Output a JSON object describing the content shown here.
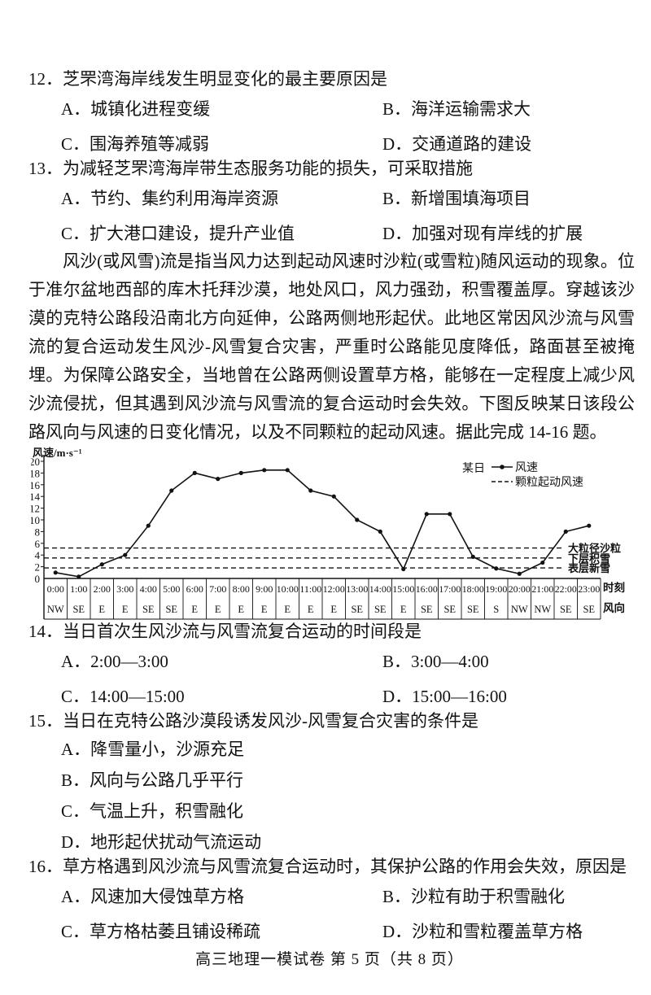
{
  "questions": {
    "q12": {
      "number": "12．",
      "stem": "芝罘湾海岸线发生明显变化的最主要原因是",
      "options": [
        "A．城镇化进程变缓",
        "B．海洋运输需求大",
        "C．围海养殖等减弱",
        "D．交通道路的建设"
      ]
    },
    "q13": {
      "number": "13．",
      "stem": "为减轻芝罘湾海岸带生态服务功能的损失，可采取措施",
      "options": [
        "A．节约、集约利用海岸资源",
        "B．新增围填海项目",
        "C．扩大港口建设，提升产业值",
        "D．加强对现有岸线的扩展"
      ]
    },
    "q14": {
      "number": "14．",
      "stem": "当日首次生风沙流与风雪流复合运动的时间段是",
      "options": [
        "A．2:00—3:00",
        "B．3:00—4:00",
        "C．14:00—15:00",
        "D．15:00—16:00"
      ]
    },
    "q15": {
      "number": "15．",
      "stem": "当日在克特公路沙漠段诱发风沙-风雪复合灾害的条件是",
      "options": [
        "A．降雪量小，沙源充足",
        "B．风向与公路几乎平行",
        "C．气温上升，积雪融化",
        "D．地形起伏扰动气流运动"
      ]
    },
    "q16": {
      "number": "16．",
      "stem": "草方格遇到风沙流与风雪流复合运动时，其保护公路的作用会失效，原因是",
      "options": [
        "A．风速加大侵蚀草方格",
        "B．沙粒有助于积雪融化",
        "C．草方格枯萎且铺设稀疏",
        "D．沙粒和雪粒覆盖草方格"
      ]
    }
  },
  "passage": {
    "text": "风沙(或风雪)流是指当风力达到起动风速时沙粒(或雪粒)随风运动的现象。位于准尔盆地西部的库木托拜沙漠，地处风口，风力强劲，积雪覆盖厚。穿越该沙漠的克特公路段沿南北方向延伸，公路两侧地形起伏。此地区常因风沙流与风雪流的复合运动发生风沙-风雪复合灾害，严重时公路能见度降低，路面甚至被掩埋。为保障公路安全，当地曾在公路两侧设置草方格，能够在一定程度上减少风沙流侵扰，但其遇到风沙流与风雪流的复合运动时会失效。下图反映某日该段公路风向与风速的日变化情况，以及不同颗粒的起动风速。据此完成 14-16 题。"
  },
  "chart_data": {
    "type": "line",
    "title": "",
    "ylabel": "风速/m·s⁻¹",
    "ylim": [
      0,
      20
    ],
    "ytick_step": 2,
    "grid": false,
    "x_axis_label": "时刻",
    "direction_axis_label": "风向",
    "x": [
      "0:00",
      "1:00",
      "2:00",
      "3:00",
      "4:00",
      "5:00",
      "6:00",
      "7:00",
      "8:00",
      "9:00",
      "10:00",
      "11:00",
      "12:00",
      "13:00",
      "14:00",
      "15:00",
      "16:00",
      "17:00",
      "18:00",
      "19:00",
      "20:00",
      "21:00",
      "22:00",
      "23:00"
    ],
    "directions": [
      "NW",
      "SE",
      "E",
      "E",
      "SE",
      "SE",
      "E",
      "E",
      "E",
      "E",
      "E",
      "E",
      "E",
      "SE",
      "SE",
      "E",
      "SE",
      "SE",
      "SE",
      "S",
      "NW",
      "NW",
      "SE",
      "SE"
    ],
    "series": [
      {
        "name": "风速",
        "values": [
          1,
          0.3,
          2.4,
          4,
          9,
          15,
          18,
          17,
          18,
          18.5,
          18.5,
          15,
          14,
          10,
          8,
          1.6,
          11,
          11,
          3.7,
          1.7,
          0.8,
          2.7,
          8,
          9
        ]
      }
    ],
    "thresholds": [
      {
        "label": "大粒径沙粒",
        "value": 5.2
      },
      {
        "label": "下层积雪",
        "value": 3.5
      },
      {
        "label": "表层新雪",
        "value": 1.8
      }
    ],
    "legend": {
      "group": "某日",
      "solid": "风速",
      "dashed": "颗粒起动风速",
      "position": "top-right"
    }
  },
  "footer": "高三地理一模试卷 第 5 页（共 8 页）"
}
